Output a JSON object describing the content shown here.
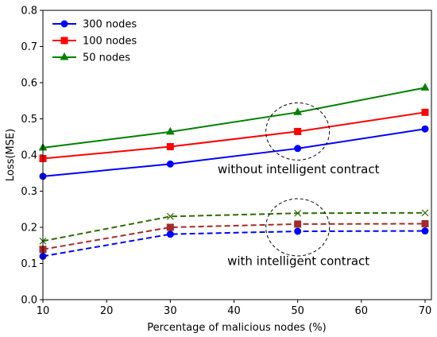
{
  "chart_data": {
    "type": "line",
    "title": "",
    "xlabel": "Percentage of malicious nodes (%)",
    "ylabel": "Loss(MSE)",
    "xlim": [
      10,
      71
    ],
    "ylim": [
      0,
      0.8
    ],
    "x_ticks": [
      10,
      20,
      30,
      40,
      50,
      60,
      70
    ],
    "y_ticks": [
      0.0,
      0.1,
      0.2,
      0.3,
      0.4,
      0.5,
      0.6,
      0.7,
      0.8
    ],
    "x": [
      10,
      30,
      50,
      70
    ],
    "legend_position": "top-left",
    "grid": false,
    "series": [
      {
        "name": "300 nodes",
        "group": "without",
        "color": "#0000ff",
        "marker": "circle",
        "dashed": false,
        "values": [
          0.341,
          0.375,
          0.418,
          0.472
        ]
      },
      {
        "name": "100 nodes",
        "group": "without",
        "color": "#ff0000",
        "marker": "square",
        "dashed": false,
        "values": [
          0.39,
          0.423,
          0.465,
          0.518
        ]
      },
      {
        "name": "50 nodes",
        "group": "without",
        "color": "#008000",
        "marker": "triangle",
        "dashed": false,
        "values": [
          0.42,
          0.464,
          0.518,
          0.586
        ]
      },
      {
        "group": "with",
        "color": "#0000ff",
        "marker": "circle",
        "dashed": true,
        "values": [
          0.12,
          0.181,
          0.189,
          0.19
        ]
      },
      {
        "group": "with",
        "color": "#a52a2a",
        "marker": "square",
        "dashed": true,
        "values": [
          0.139,
          0.2,
          0.209,
          0.21
        ]
      },
      {
        "group": "with",
        "color": "#2e6e00",
        "marker": "x",
        "dashed": true,
        "values": [
          0.162,
          0.23,
          0.239,
          0.24
        ]
      }
    ],
    "annotations": [
      {
        "text": "without intelligent contract",
        "x": 50,
        "y": 0.36
      },
      {
        "text": "with intelligent contract",
        "x": 50,
        "y": 0.107
      }
    ],
    "highlight_circles": [
      {
        "x": 50,
        "y": 0.465
      },
      {
        "x": 50,
        "y": 0.2
      }
    ]
  }
}
